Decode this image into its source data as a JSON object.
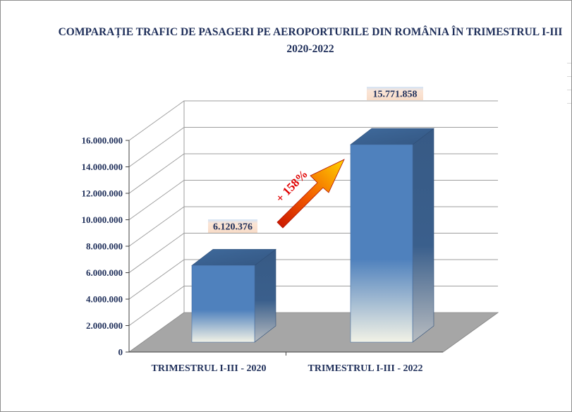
{
  "chart_data": {
    "type": "bar",
    "title": "COMPARAȚIE TRAFIC DE PASAGERI PE AEROPORTURILE DIN ROMÂNIA ÎN TRIMESTRUL I-III 2020-2022",
    "categories": [
      "TRIMESTRUL I-III - 2020",
      "TRIMESTRUL I-III - 2022"
    ],
    "values": [
      6120376,
      15771858
    ],
    "data_labels": [
      "6.120.376",
      "15.771.858"
    ],
    "y_ticks": [
      0,
      2000000,
      4000000,
      6000000,
      8000000,
      10000000,
      12000000,
      14000000,
      16000000
    ],
    "y_tick_labels": [
      "0",
      "2.000.000",
      "4.000.000",
      "6.000.000",
      "8.000.000",
      "10.000.000",
      "12.000.000",
      "14.000.000",
      "16.000.000"
    ],
    "ylim": [
      0,
      16000000
    ],
    "xlabel": "",
    "ylabel": "",
    "grid": true,
    "style": "3d",
    "annotation": "+ 158%",
    "colors": {
      "bar_top": "#4f81bd",
      "bar_side": "#385d8a",
      "bar_bottom": "#f2f2e6",
      "floor": "#a6a6a6",
      "gridline": "#9e9e9e",
      "text": "#1f2f5a",
      "data_label_bg": "#fbe5d6",
      "arrow_start": "#d81e00",
      "arrow_end": "#ffd000",
      "annotation_text": "#e00000"
    }
  }
}
